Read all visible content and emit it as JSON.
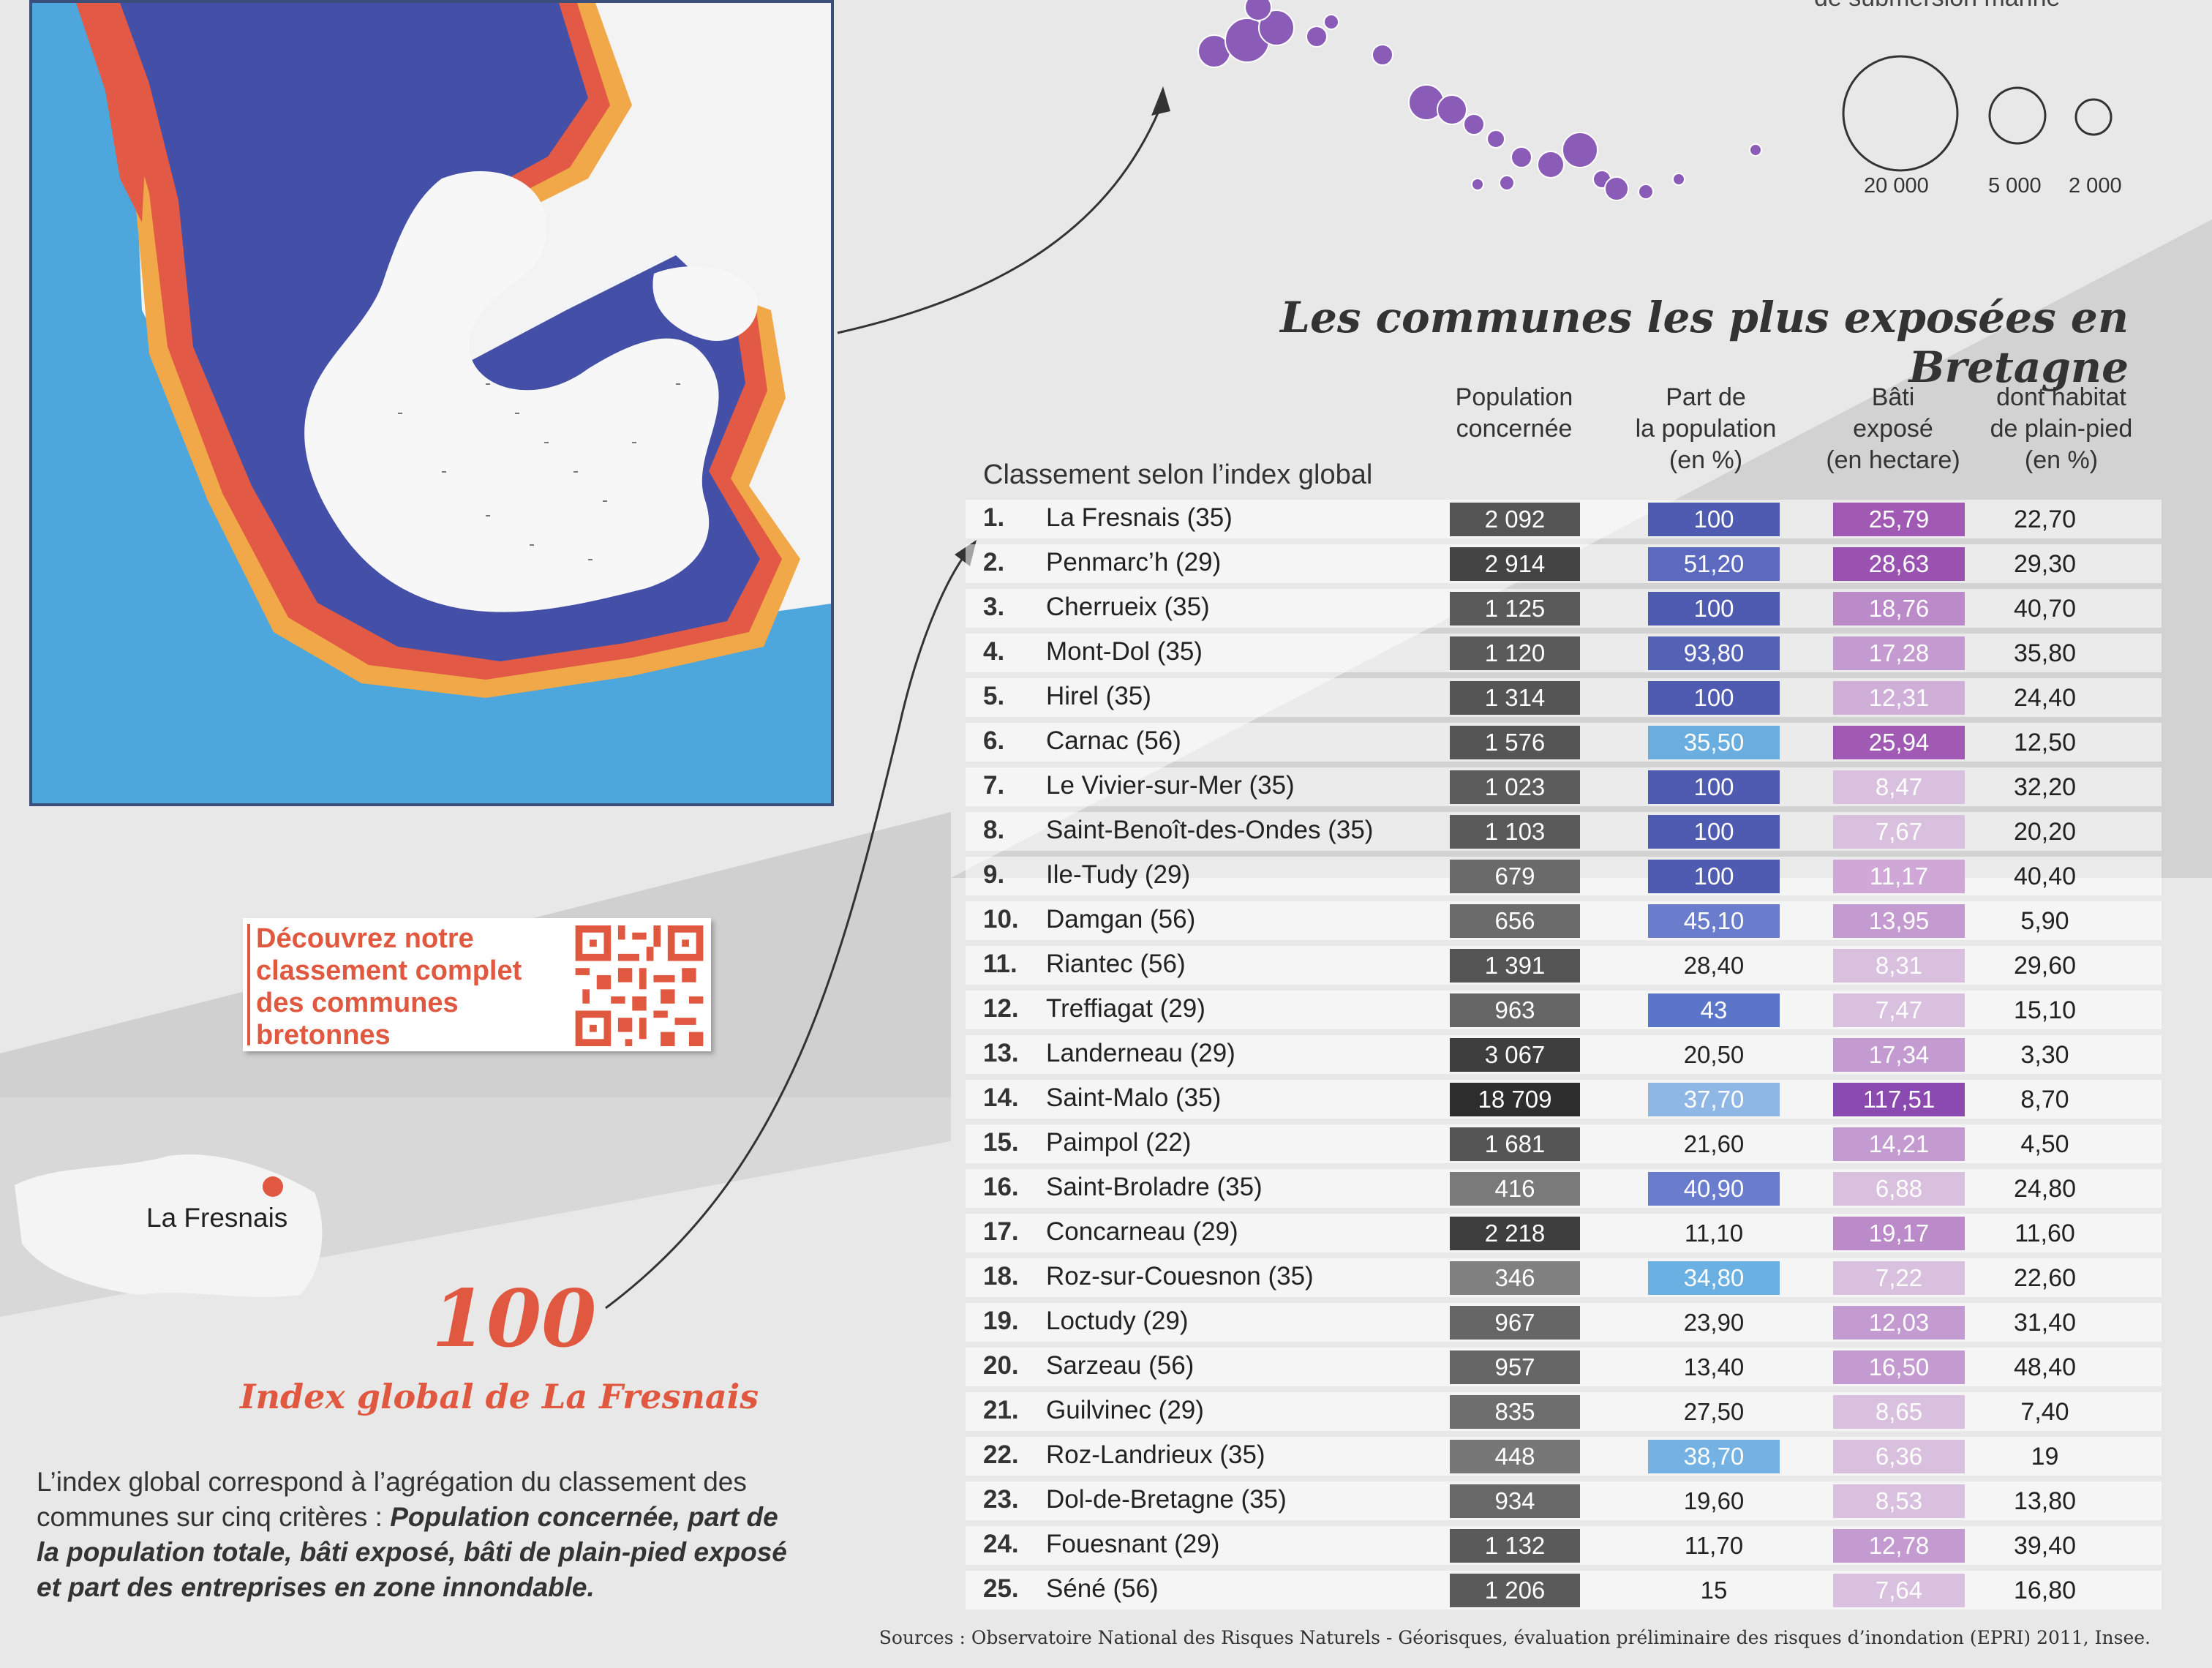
{
  "legend": {
    "partial_label": "de submersion marine",
    "sizes": [
      "20 000",
      "5 000",
      "2 000"
    ]
  },
  "title": "Les communes les plus exposées en Bretagne",
  "ranking_caption": "Classement selon l’index global",
  "columns": {
    "population": [
      "Population",
      "concernée"
    ],
    "part": [
      "Part de",
      "la population",
      "(en %)"
    ],
    "bati": [
      "Bâti",
      "exposé",
      "(en hectare)"
    ],
    "habitat": [
      "dont habitat",
      "de plain-pied",
      "(en %)"
    ]
  },
  "rows": [
    {
      "rank": "1.",
      "name": "La Fresnais (35)",
      "population": "2 092",
      "part": "100",
      "bati": "25,79",
      "habitat": "22,70"
    },
    {
      "rank": "2.",
      "name": "Penmarc’h (29)",
      "population": "2 914",
      "part": "51,20",
      "bati": "28,63",
      "habitat": "29,30"
    },
    {
      "rank": "3.",
      "name": "Cherrueix (35)",
      "population": "1 125",
      "part": "100",
      "bati": "18,76",
      "habitat": "40,70"
    },
    {
      "rank": "4.",
      "name": "Mont-Dol (35)",
      "population": "1 120",
      "part": "93,80",
      "bati": "17,28",
      "habitat": "35,80"
    },
    {
      "rank": "5.",
      "name": "Hirel (35)",
      "population": "1 314",
      "part": "100",
      "bati": "12,31",
      "habitat": "24,40"
    },
    {
      "rank": "6.",
      "name": "Carnac (56)",
      "population": "1 576",
      "part": "35,50",
      "bati": "25,94",
      "habitat": "12,50"
    },
    {
      "rank": "7.",
      "name": "Le Vivier-sur-Mer (35)",
      "population": "1 023",
      "part": "100",
      "bati": "8,47",
      "habitat": "32,20"
    },
    {
      "rank": "8.",
      "name": "Saint-Benoît-des-Ondes (35)",
      "population": "1 103",
      "part": "100",
      "bati": "7,67",
      "habitat": "20,20"
    },
    {
      "rank": "9.",
      "name": "Ile-Tudy (29)",
      "population": "679",
      "part": "100",
      "bati": "11,17",
      "habitat": "40,40"
    },
    {
      "rank": "10.",
      "name": "Damgan (56)",
      "population": "656",
      "part": "45,10",
      "bati": "13,95",
      "habitat": "5,90"
    },
    {
      "rank": "11.",
      "name": "Riantec (56)",
      "population": "1 391",
      "part": "28,40",
      "bati": "8,31",
      "habitat": "29,60"
    },
    {
      "rank": "12.",
      "name": "Treffiagat (29)",
      "population": "963",
      "part": "43",
      "bati": "7,47",
      "habitat": "15,10"
    },
    {
      "rank": "13.",
      "name": "Landerneau (29)",
      "population": "3 067",
      "part": "20,50",
      "bati": "17,34",
      "habitat": "3,30"
    },
    {
      "rank": "14.",
      "name": "Saint-Malo (35)",
      "population": "18 709",
      "part": "37,70",
      "bati": "117,51",
      "habitat": "8,70"
    },
    {
      "rank": "15.",
      "name": "Paimpol (22)",
      "population": "1 681",
      "part": "21,60",
      "bati": "14,21",
      "habitat": "4,50"
    },
    {
      "rank": "16.",
      "name": "Saint-Broladre (35)",
      "population": "416",
      "part": "40,90",
      "bati": "6,88",
      "habitat": "24,80"
    },
    {
      "rank": "17.",
      "name": "Concarneau (29)",
      "population": "2 218",
      "part": "11,10",
      "bati": "19,17",
      "habitat": "11,60"
    },
    {
      "rank": "18.",
      "name": "Roz-sur-Couesnon (35)",
      "population": "346",
      "part": "34,80",
      "bati": "7,22",
      "habitat": "22,60"
    },
    {
      "rank": "19.",
      "name": "Loctudy (29)",
      "population": "967",
      "part": "23,90",
      "bati": "12,03",
      "habitat": "31,40"
    },
    {
      "rank": "20.",
      "name": "Sarzeau (56)",
      "population": "957",
      "part": "13,40",
      "bati": "16,50",
      "habitat": "48,40"
    },
    {
      "rank": "21.",
      "name": "Guilvinec (29)",
      "population": "835",
      "part": "27,50",
      "bati": "8,65",
      "habitat": "7,40"
    },
    {
      "rank": "22.",
      "name": "Roz-Landrieux (35)",
      "population": "448",
      "part": "38,70",
      "bati": "6,36",
      "habitat": "19"
    },
    {
      "rank": "23.",
      "name": "Dol-de-Bretagne (35)",
      "population": "934",
      "part": "19,60",
      "bati": "8,53",
      "habitat": "13,80"
    },
    {
      "rank": "24.",
      "name": "Fouesnant (29)",
      "population": "1 132",
      "part": "11,70",
      "bati": "12,78",
      "habitat": "39,40"
    },
    {
      "rank": "25.",
      "name": "Séné (56)",
      "population": "1 206",
      "part": "15",
      "bati": "7,64",
      "habitat": "16,80"
    }
  ],
  "promo": {
    "lines": [
      "Découvrez notre",
      "classement complet",
      "des communes",
      "bretonnes"
    ]
  },
  "small_map_label": "La Fresnais",
  "index_value": "100",
  "index_caption": "Index global de La Fresnais",
  "explanation": {
    "intro": "L’index global correspond à l’agrégation du classement des communes sur cinq critères :",
    "criteria": "Population concernée, part de la population totale, bâti exposé, bâti de plain-pied exposé et part des entreprises en zone innondable."
  },
  "sources": "Sources : Observatoire National des Risques Naturels - Géorisques, évaluation préliminaire des risques d’inondation (EPRI) 2011, Insee.",
  "colors": {
    "accent_red": "#e0583f",
    "sea_blue": "#4da6dc",
    "flood_dark_blue": "#4450a8",
    "flood_red": "#e25a45",
    "flood_orange": "#f0a848",
    "bubble_purple": "#8a5cb8"
  }
}
